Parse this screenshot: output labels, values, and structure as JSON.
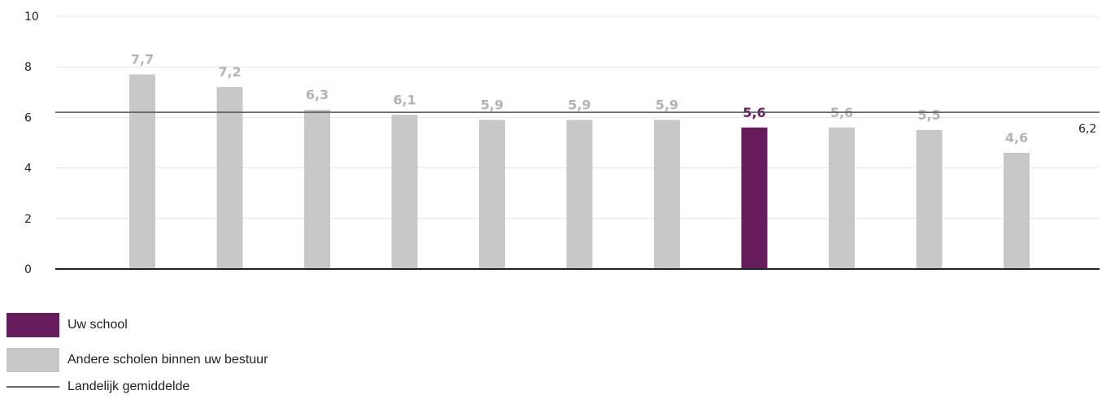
{
  "chart_data": {
    "type": "bar",
    "categories": [
      "",
      "",
      "",
      "",
      "",
      "",
      "",
      "",
      "",
      "",
      ""
    ],
    "values": [
      7.7,
      7.2,
      6.3,
      6.1,
      5.9,
      5.9,
      5.9,
      5.6,
      5.6,
      5.5,
      4.6
    ],
    "value_labels": [
      "7,7",
      "7,2",
      "6,3",
      "6,1",
      "5,9",
      "5,9",
      "5,9",
      "5,6",
      "5,6",
      "5,5",
      "4,6"
    ],
    "highlight_index": 7,
    "reference_line": {
      "value": 6.2,
      "label": "6,2"
    },
    "ylim": [
      0,
      10
    ],
    "yticks": [
      "0",
      "2",
      "4",
      "6",
      "8",
      "10"
    ],
    "grid": true,
    "legend_position": "bottom-left"
  },
  "legend": {
    "own_school": "Uw school",
    "other_schools": "Andere scholen binnen uw bestuur",
    "national_average": "Landelijk gemiddelde"
  },
  "colors": {
    "own_school": "#651d5b",
    "other_schools": "#c8c8c8",
    "national_average": "#555555",
    "grid": "#e4e4e4",
    "axis": "#222222"
  }
}
